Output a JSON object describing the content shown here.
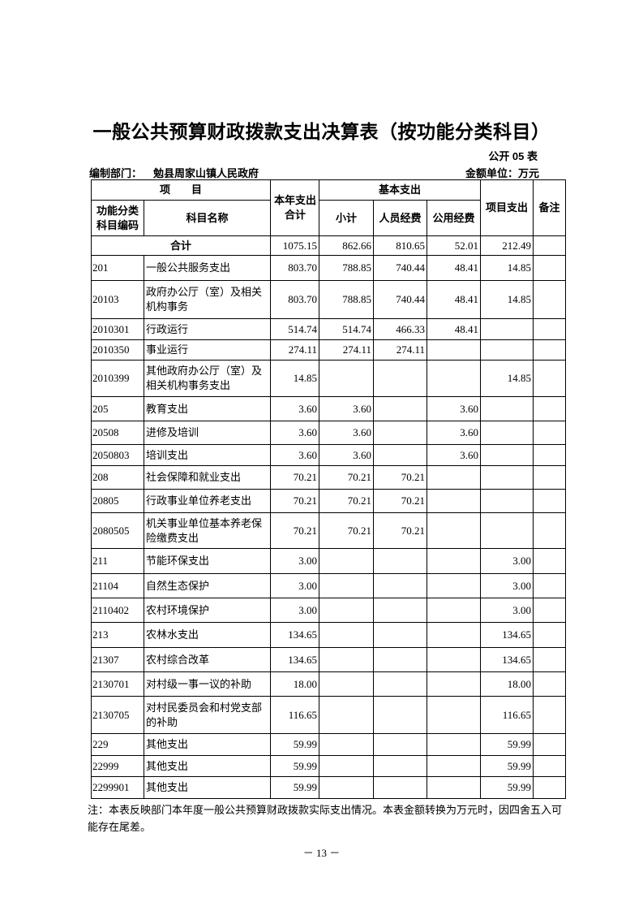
{
  "title": "一般公共预算财政拨款支出决算表（按功能分类科目）",
  "form_no": "公开 05 表",
  "dept_label": "编制部门：",
  "dept_name": "勉县周家山镇人民政府",
  "unit_label": "金额单位：万元",
  "headers": {
    "item": "项　　目",
    "code": "功能分类科目编码",
    "name": "科目名称",
    "total": "本年支出合计",
    "basic": "基本支出",
    "subtotal": "小计",
    "personnel": "人员经费",
    "public": "公用经费",
    "project": "项目支出",
    "remark": "备注"
  },
  "total_row": {
    "label": "合计",
    "total": "1075.15",
    "subtotal": "862.66",
    "personnel": "810.65",
    "public": "52.01",
    "project": "212.49",
    "remark": ""
  },
  "rows": [
    {
      "code": "201",
      "name": "一般公共服务支出",
      "total": "803.70",
      "subtotal": "788.85",
      "personnel": "740.44",
      "public": "48.41",
      "project": "14.85"
    },
    {
      "code": "20103",
      "name": "政府办公厅（室）及相关机构事务",
      "total": "803.70",
      "subtotal": "788.85",
      "personnel": "740.44",
      "public": "48.41",
      "project": "14.85"
    },
    {
      "code": "2010301",
      "name": "行政运行",
      "total": "514.74",
      "subtotal": "514.74",
      "personnel": "466.33",
      "public": "48.41",
      "project": ""
    },
    {
      "code": "2010350",
      "name": "事业运行",
      "total": "274.11",
      "subtotal": "274.11",
      "personnel": "274.11",
      "public": "",
      "project": ""
    },
    {
      "code": "2010399",
      "name": "其他政府办公厅（室）及相关机构事务支出",
      "total": "14.85",
      "subtotal": "",
      "personnel": "",
      "public": "",
      "project": "14.85"
    },
    {
      "code": "205",
      "name": "教育支出",
      "total": "3.60",
      "subtotal": "3.60",
      "personnel": "",
      "public": "3.60",
      "project": ""
    },
    {
      "code": "20508",
      "name": "进修及培训",
      "total": "3.60",
      "subtotal": "3.60",
      "personnel": "",
      "public": "3.60",
      "project": ""
    },
    {
      "code": "2050803",
      "name": "培训支出",
      "total": "3.60",
      "subtotal": "3.60",
      "personnel": "",
      "public": "3.60",
      "project": ""
    },
    {
      "code": "208",
      "name": "社会保障和就业支出",
      "total": "70.21",
      "subtotal": "70.21",
      "personnel": "70.21",
      "public": "",
      "project": ""
    },
    {
      "code": "20805",
      "name": "行政事业单位养老支出",
      "total": "70.21",
      "subtotal": "70.21",
      "personnel": "70.21",
      "public": "",
      "project": ""
    },
    {
      "code": "2080505",
      "name": " 机关事业单位基本养老保险缴费支出",
      "total": "70.21",
      "subtotal": "70.21",
      "personnel": "70.21",
      "public": "",
      "project": ""
    },
    {
      "code": "211",
      "name": "节能环保支出",
      "total": "3.00",
      "subtotal": "",
      "personnel": "",
      "public": "",
      "project": "3.00"
    },
    {
      "code": "21104",
      "name": "自然生态保护",
      "total": "3.00",
      "subtotal": "",
      "personnel": "",
      "public": "",
      "project": "3.00"
    },
    {
      "code": "2110402",
      "name": "农村环境保护",
      "total": "3.00",
      "subtotal": "",
      "personnel": "",
      "public": "",
      "project": "3.00"
    },
    {
      "code": "213",
      "name": "农林水支出",
      "total": "134.65",
      "subtotal": "",
      "personnel": "",
      "public": "",
      "project": "134.65"
    },
    {
      "code": "21307",
      "name": "农村综合改革",
      "total": "134.65",
      "subtotal": "",
      "personnel": "",
      "public": "",
      "project": "134.65"
    },
    {
      "code": "2130701",
      "name": "对村级一事一议的补助",
      "total": "18.00",
      "subtotal": "",
      "personnel": "",
      "public": "",
      "project": "18.00"
    },
    {
      "code": "2130705",
      "name": "对村民委员会和村党支部的补助",
      "total": "116.65",
      "subtotal": "",
      "personnel": "",
      "public": "",
      "project": "116.65"
    },
    {
      "code": "229",
      "name": "其他支出",
      "total": "59.99",
      "subtotal": "",
      "personnel": "",
      "public": "",
      "project": "59.99"
    },
    {
      "code": "22999",
      "name": "其他支出",
      "total": "59.99",
      "subtotal": "",
      "personnel": "",
      "public": "",
      "project": "59.99"
    },
    {
      "code": "2299901",
      "name": "其他支出",
      "total": "59.99",
      "subtotal": "",
      "personnel": "",
      "public": "",
      "project": "59.99"
    }
  ],
  "note": "注：本表反映部门本年度一般公共预算财政拨款实际支出情况。本表金额转换为万元时，因四舍五入可能存在尾差。",
  "page_number": "－ 13 －"
}
